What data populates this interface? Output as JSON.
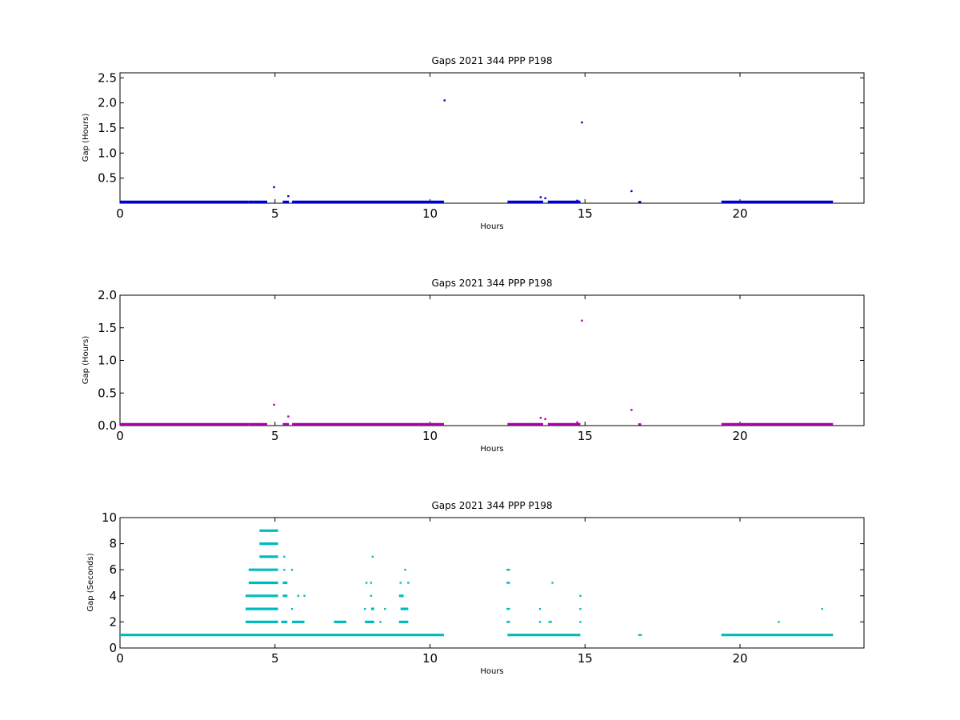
{
  "chart_data": [
    {
      "type": "scatter",
      "title": "Gaps 2021 344 PPP  P198",
      "xlabel": "Hours",
      "ylabel": "Gap (Hours)",
      "xlim": [
        0,
        24
      ],
      "ylim": [
        0,
        2.6
      ],
      "xticks": [
        0,
        5,
        10,
        15,
        20
      ],
      "xtick_labels": [
        "0",
        "5",
        "10",
        "15",
        "20"
      ],
      "yticks": [
        0.5,
        1.0,
        1.5,
        2.0,
        2.5
      ],
      "ytick_labels": [
        "0.5",
        "1.0",
        "1.5",
        "2.0",
        "2.5"
      ],
      "color": "#0000cc",
      "grid": false,
      "segments": [
        {
          "start": 0.0,
          "end": 4.15,
          "y": 0.0003
        },
        {
          "start": 4.15,
          "end": 4.75,
          "y": 0.0006
        },
        {
          "start": 5.25,
          "end": 5.45,
          "y": 0.0003
        },
        {
          "start": 5.55,
          "end": 10.45,
          "y": 0.0003
        },
        {
          "start": 12.5,
          "end": 13.65,
          "y": 0.0003
        },
        {
          "start": 13.8,
          "end": 14.85,
          "y": 0.0003
        },
        {
          "start": 19.4,
          "end": 23.0,
          "y": 0.0003
        }
      ],
      "points": [
        {
          "x": 4.97,
          "y": 0.32
        },
        {
          "x": 5.43,
          "y": 0.14
        },
        {
          "x": 10.47,
          "y": 2.05
        },
        {
          "x": 13.57,
          "y": 0.12
        },
        {
          "x": 13.72,
          "y": 0.1
        },
        {
          "x": 14.6,
          "y": 0.02
        },
        {
          "x": 14.75,
          "y": 0.05
        },
        {
          "x": 14.9,
          "y": 1.61
        },
        {
          "x": 16.5,
          "y": 0.24
        },
        {
          "x": 16.75,
          "y": 0.02
        },
        {
          "x": 16.78,
          "y": 0.01
        }
      ]
    },
    {
      "type": "scatter",
      "title": "Gaps 2021 344 PPP  P198",
      "xlabel": "Hours",
      "ylabel": "Gap (Hours)",
      "xlim": [
        0,
        24
      ],
      "ylim": [
        0,
        2.0
      ],
      "xticks": [
        0,
        5,
        10,
        15,
        20
      ],
      "xtick_labels": [
        "0",
        "5",
        "10",
        "15",
        "20"
      ],
      "yticks": [
        0.0,
        0.5,
        1.0,
        1.5,
        2.0
      ],
      "ytick_labels": [
        "0.0",
        "0.5",
        "1.0",
        "1.5",
        "2.0"
      ],
      "color": "#aa00aa",
      "grid": false,
      "segments": [
        {
          "start": 0.0,
          "end": 4.15,
          "y": 0.0003
        },
        {
          "start": 4.15,
          "end": 4.75,
          "y": 0.0006
        },
        {
          "start": 5.25,
          "end": 5.45,
          "y": 0.0003
        },
        {
          "start": 5.55,
          "end": 10.45,
          "y": 0.0003
        },
        {
          "start": 12.5,
          "end": 13.65,
          "y": 0.0003
        },
        {
          "start": 13.8,
          "end": 14.85,
          "y": 0.0003
        },
        {
          "start": 19.4,
          "end": 23.0,
          "y": 0.0003
        }
      ],
      "points": [
        {
          "x": 4.97,
          "y": 0.32
        },
        {
          "x": 5.43,
          "y": 0.14
        },
        {
          "x": 13.57,
          "y": 0.12
        },
        {
          "x": 13.72,
          "y": 0.1
        },
        {
          "x": 14.6,
          "y": 0.02
        },
        {
          "x": 14.75,
          "y": 0.05
        },
        {
          "x": 14.9,
          "y": 1.61
        },
        {
          "x": 16.5,
          "y": 0.24
        },
        {
          "x": 16.75,
          "y": 0.02
        },
        {
          "x": 16.78,
          "y": 0.01
        }
      ]
    },
    {
      "type": "scatter",
      "title": "Gaps 2021 344 PPP  P198",
      "xlabel": "Hours",
      "ylabel": "Gap (Seconds)",
      "xlim": [
        0,
        24
      ],
      "ylim": [
        0,
        10
      ],
      "xticks": [
        0,
        5,
        10,
        15,
        20
      ],
      "xtick_labels": [
        "0",
        "5",
        "10",
        "15",
        "20"
      ],
      "yticks": [
        0,
        2,
        4,
        6,
        8,
        10
      ],
      "ytick_labels": [
        "0",
        "2",
        "4",
        "6",
        "8",
        "10"
      ],
      "color": "#00bbbb",
      "grid": false,
      "segments": [
        {
          "start": 0.0,
          "end": 10.45,
          "y": 1
        },
        {
          "start": 12.5,
          "end": 14.85,
          "y": 1
        },
        {
          "start": 19.4,
          "end": 23.0,
          "y": 1
        },
        {
          "start": 4.05,
          "end": 5.1,
          "y": 2
        },
        {
          "start": 5.2,
          "end": 5.4,
          "y": 2
        },
        {
          "start": 5.55,
          "end": 5.95,
          "y": 2
        },
        {
          "start": 6.9,
          "end": 7.3,
          "y": 2
        },
        {
          "start": 7.9,
          "end": 8.2,
          "y": 2
        },
        {
          "start": 9.0,
          "end": 9.3,
          "y": 2
        },
        {
          "start": 4.05,
          "end": 5.1,
          "y": 3
        },
        {
          "start": 8.1,
          "end": 8.2,
          "y": 3
        },
        {
          "start": 9.05,
          "end": 9.3,
          "y": 3
        },
        {
          "start": 4.05,
          "end": 5.1,
          "y": 4
        },
        {
          "start": 5.25,
          "end": 5.4,
          "y": 4
        },
        {
          "start": 9.0,
          "end": 9.15,
          "y": 4
        },
        {
          "start": 4.15,
          "end": 5.1,
          "y": 5
        },
        {
          "start": 5.25,
          "end": 5.4,
          "y": 5
        },
        {
          "start": 4.15,
          "end": 5.1,
          "y": 6
        },
        {
          "start": 4.5,
          "end": 5.1,
          "y": 7
        },
        {
          "start": 4.5,
          "end": 5.1,
          "y": 8
        },
        {
          "start": 4.5,
          "end": 5.1,
          "y": 9
        }
      ],
      "points": [
        {
          "x": 5.0,
          "y": 1
        },
        {
          "x": 9.05,
          "y": 5
        },
        {
          "x": 9.3,
          "y": 5
        },
        {
          "x": 5.3,
          "y": 7
        },
        {
          "x": 8.15,
          "y": 7
        },
        {
          "x": 5.3,
          "y": 6
        },
        {
          "x": 5.55,
          "y": 6
        },
        {
          "x": 9.2,
          "y": 6
        },
        {
          "x": 5.55,
          "y": 3
        },
        {
          "x": 7.9,
          "y": 3
        },
        {
          "x": 8.1,
          "y": 4
        },
        {
          "x": 5.75,
          "y": 4
        },
        {
          "x": 5.95,
          "y": 4
        },
        {
          "x": 7.95,
          "y": 5
        },
        {
          "x": 8.1,
          "y": 5
        },
        {
          "x": 8.4,
          "y": 2
        },
        {
          "x": 8.55,
          "y": 3
        },
        {
          "x": 12.5,
          "y": 2
        },
        {
          "x": 12.55,
          "y": 2
        },
        {
          "x": 12.5,
          "y": 3
        },
        {
          "x": 12.55,
          "y": 3
        },
        {
          "x": 12.5,
          "y": 5
        },
        {
          "x": 12.55,
          "y": 5
        },
        {
          "x": 12.5,
          "y": 6
        },
        {
          "x": 12.55,
          "y": 6
        },
        {
          "x": 13.55,
          "y": 2
        },
        {
          "x": 13.55,
          "y": 3
        },
        {
          "x": 13.85,
          "y": 2
        },
        {
          "x": 13.9,
          "y": 2
        },
        {
          "x": 13.95,
          "y": 5
        },
        {
          "x": 14.85,
          "y": 2
        },
        {
          "x": 14.85,
          "y": 3
        },
        {
          "x": 14.85,
          "y": 4
        },
        {
          "x": 16.75,
          "y": 1
        },
        {
          "x": 16.8,
          "y": 1
        },
        {
          "x": 21.25,
          "y": 2
        },
        {
          "x": 22.65,
          "y": 3
        }
      ]
    }
  ]
}
